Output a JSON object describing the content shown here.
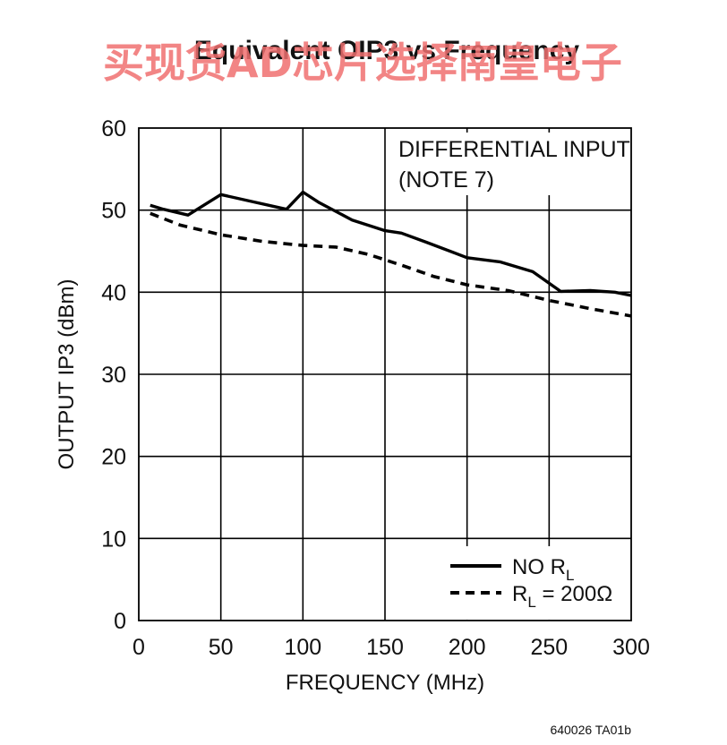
{
  "chart_data": {
    "type": "line",
    "title": "Equivalent OIP3 vs Frequency",
    "xlabel": "FREQUENCY (MHz)",
    "ylabel": "OUTPUT IP3 (dBm)",
    "xlim": [
      0,
      300
    ],
    "ylim": [
      0,
      60
    ],
    "x_ticks": [
      0,
      50,
      100,
      150,
      200,
      250,
      300
    ],
    "y_ticks": [
      0,
      10,
      20,
      30,
      40,
      50,
      60
    ],
    "grid": true,
    "annotation": [
      "DIFFERENTIAL INPUT",
      "(NOTE 7)"
    ],
    "legend_position": "bottom-right",
    "series": [
      {
        "name": "NO R",
        "name_sub": "L",
        "style": "solid",
        "x": [
          7,
          15,
          30,
          50,
          70,
          90,
          100,
          110,
          130,
          150,
          160,
          175,
          200,
          220,
          240,
          257,
          275,
          290,
          300
        ],
        "y": [
          50.6,
          50.1,
          49.4,
          51.9,
          51.0,
          50.1,
          52.2,
          50.9,
          48.8,
          47.5,
          47.2,
          46.1,
          44.2,
          43.7,
          42.5,
          40.1,
          40.2,
          40.0,
          39.6
        ]
      },
      {
        "name": "R",
        "name_sub": "L",
        "name_suffix": " = 200Ω",
        "style": "dashed",
        "x": [
          7,
          25,
          50,
          75,
          100,
          120,
          140,
          160,
          180,
          200,
          225,
          250,
          275,
          300
        ],
        "y": [
          49.6,
          48.2,
          47.0,
          46.2,
          45.7,
          45.5,
          44.6,
          43.3,
          41.9,
          40.9,
          40.2,
          39.0,
          38.0,
          37.1
        ]
      }
    ]
  },
  "watermark": "买现货AD芯片选择南皇电子",
  "footer": "640026 TA01b"
}
